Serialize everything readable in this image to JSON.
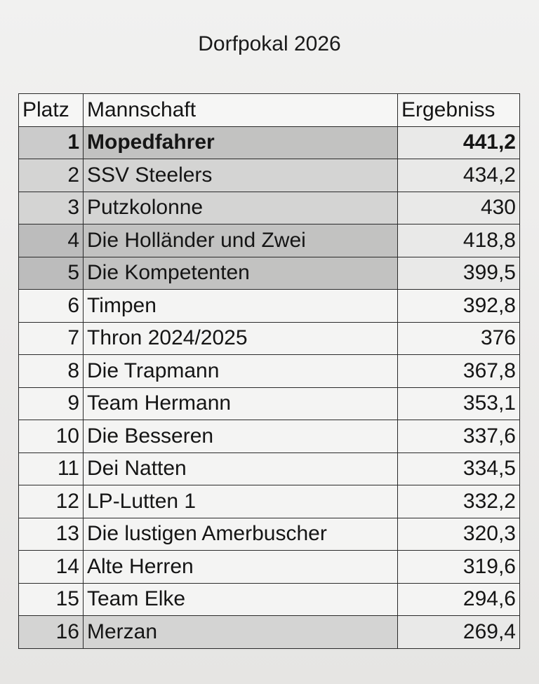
{
  "title": "Dorfpokal 2026",
  "table": {
    "headers": [
      "Platz",
      "Mannschaft",
      "Ergebniss"
    ],
    "rows": [
      {
        "platz": "1",
        "name": "Mopedfahrer",
        "score": "441,2"
      },
      {
        "platz": "2",
        "name": "SSV Steelers",
        "score": "434,2"
      },
      {
        "platz": "3",
        "name": "Putzkolonne",
        "score": "430"
      },
      {
        "platz": "4",
        "name": "Die Holländer und Zwei",
        "score": "418,8"
      },
      {
        "platz": "5",
        "name": "Die Kompetenten",
        "score": "399,5"
      },
      {
        "platz": "6",
        "name": "Timpen",
        "score": "392,8"
      },
      {
        "platz": "7",
        "name": "Thron 2024/2025",
        "score": "376"
      },
      {
        "platz": "8",
        "name": "Die Trapmann",
        "score": "367,8"
      },
      {
        "platz": "9",
        "name": "Team Hermann",
        "score": "353,1"
      },
      {
        "platz": "10",
        "name": "Die Besseren",
        "score": "337,6"
      },
      {
        "platz": "11",
        "name": "Dei Natten",
        "score": "334,5"
      },
      {
        "platz": "12",
        "name": "LP-Lutten 1",
        "score": "332,2"
      },
      {
        "platz": "13",
        "name": "Die lustigen Amerbuscher",
        "score": "320,3"
      },
      {
        "platz": "14",
        "name": "Alte Herren",
        "score": "319,6"
      },
      {
        "platz": "15",
        "name": "Team Elke",
        "score": "294,6"
      },
      {
        "platz": "16",
        "name": "Merzan",
        "score": "269,4"
      }
    ]
  }
}
